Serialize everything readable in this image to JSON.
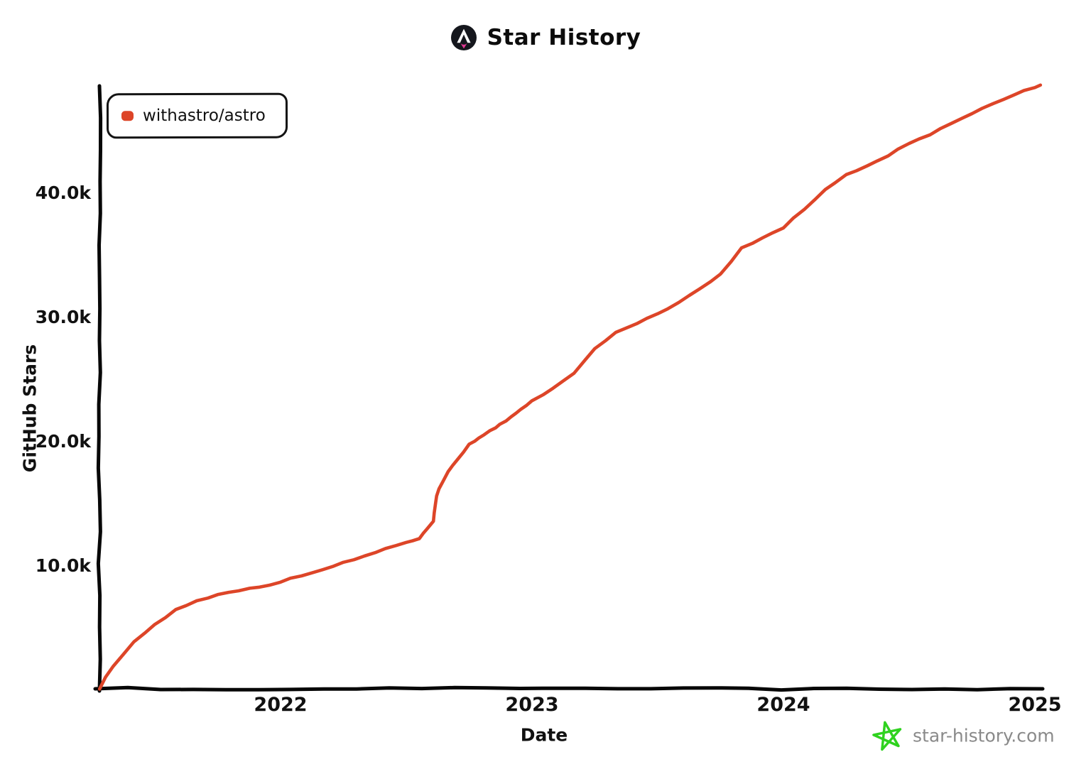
{
  "header": {
    "title": "Star History"
  },
  "legend": {
    "items": [
      {
        "label": "withastro/astro",
        "color": "#dd4528"
      }
    ]
  },
  "watermark": {
    "text": "star-history.com",
    "text_color": "#8a8a8a",
    "star_color": "#2fd21f"
  },
  "colors": {
    "line": "#dd4528",
    "axis": "#070707",
    "logo_bg": "#15171d",
    "logo_glyph": "#ffffff",
    "logo_flame": "#e23a94"
  },
  "chart_data": {
    "type": "line",
    "title": "Star History",
    "xlabel": "Date",
    "ylabel": "GitHub Stars",
    "grid": false,
    "legend_position": "top-left",
    "ylim": [
      0,
      48600
    ],
    "xlim_dates": [
      "2021-04-12",
      "2025-01-12"
    ],
    "x_ticks": [
      {
        "label": "2022",
        "year": 2022
      },
      {
        "label": "2023",
        "year": 2023
      },
      {
        "label": "2024",
        "year": 2024
      },
      {
        "label": "2025",
        "year": 2025
      }
    ],
    "y_ticks": [
      {
        "label": "10.0k",
        "value": 10000
      },
      {
        "label": "20.0k",
        "value": 20000
      },
      {
        "label": "30.0k",
        "value": 30000
      },
      {
        "label": "40.0k",
        "value": 40000
      }
    ],
    "series": [
      {
        "name": "withastro/astro",
        "color": "#dd4528",
        "points": [
          {
            "date": "2021-04-12",
            "stars": 100
          },
          {
            "date": "2021-05-01",
            "stars": 1900
          },
          {
            "date": "2021-06-01",
            "stars": 3900
          },
          {
            "date": "2021-07-01",
            "stars": 5300
          },
          {
            "date": "2021-08-01",
            "stars": 6500
          },
          {
            "date": "2021-09-01",
            "stars": 7200
          },
          {
            "date": "2021-10-01",
            "stars": 7700
          },
          {
            "date": "2021-11-01",
            "stars": 8000
          },
          {
            "date": "2021-12-01",
            "stars": 8300
          },
          {
            "date": "2022-01-01",
            "stars": 8700
          },
          {
            "date": "2022-02-01",
            "stars": 9200
          },
          {
            "date": "2022-03-01",
            "stars": 9700
          },
          {
            "date": "2022-04-01",
            "stars": 10300
          },
          {
            "date": "2022-05-01",
            "stars": 10800
          },
          {
            "date": "2022-06-01",
            "stars": 11400
          },
          {
            "date": "2022-07-01",
            "stars": 11900
          },
          {
            "date": "2022-07-20",
            "stars": 12200
          },
          {
            "date": "2022-08-01",
            "stars": 13000
          },
          {
            "date": "2022-08-10",
            "stars": 13600
          },
          {
            "date": "2022-08-13",
            "stars": 15000
          },
          {
            "date": "2022-08-18",
            "stars": 16200
          },
          {
            "date": "2022-09-01",
            "stars": 17600
          },
          {
            "date": "2022-09-15",
            "stars": 18600
          },
          {
            "date": "2022-10-01",
            "stars": 19800
          },
          {
            "date": "2022-10-15",
            "stars": 20300
          },
          {
            "date": "2022-11-01",
            "stars": 20900
          },
          {
            "date": "2022-11-15",
            "stars": 21400
          },
          {
            "date": "2022-12-01",
            "stars": 22000
          },
          {
            "date": "2022-12-15",
            "stars": 22600
          },
          {
            "date": "2023-01-01",
            "stars": 23300
          },
          {
            "date": "2023-02-01",
            "stars": 24300
          },
          {
            "date": "2023-03-01",
            "stars": 25500
          },
          {
            "date": "2023-04-01",
            "stars": 27500
          },
          {
            "date": "2023-05-01",
            "stars": 28800
          },
          {
            "date": "2023-06-01",
            "stars": 29500
          },
          {
            "date": "2023-07-01",
            "stars": 30300
          },
          {
            "date": "2023-08-01",
            "stars": 31200
          },
          {
            "date": "2023-09-01",
            "stars": 32300
          },
          {
            "date": "2023-10-01",
            "stars": 33500
          },
          {
            "date": "2023-11-01",
            "stars": 35600
          },
          {
            "date": "2023-12-01",
            "stars": 36400
          },
          {
            "date": "2024-01-01",
            "stars": 37200
          },
          {
            "date": "2024-02-01",
            "stars": 38700
          },
          {
            "date": "2024-03-01",
            "stars": 40300
          },
          {
            "date": "2024-04-01",
            "stars": 41500
          },
          {
            "date": "2024-05-01",
            "stars": 42200
          },
          {
            "date": "2024-06-01",
            "stars": 43000
          },
          {
            "date": "2024-07-01",
            "stars": 44000
          },
          {
            "date": "2024-08-01",
            "stars": 44700
          },
          {
            "date": "2024-09-01",
            "stars": 45600
          },
          {
            "date": "2024-10-01",
            "stars": 46400
          },
          {
            "date": "2024-11-01",
            "stars": 47200
          },
          {
            "date": "2024-12-01",
            "stars": 47900
          },
          {
            "date": "2025-01-01",
            "stars": 48500
          },
          {
            "date": "2025-01-09",
            "stars": 48700
          }
        ]
      }
    ]
  }
}
